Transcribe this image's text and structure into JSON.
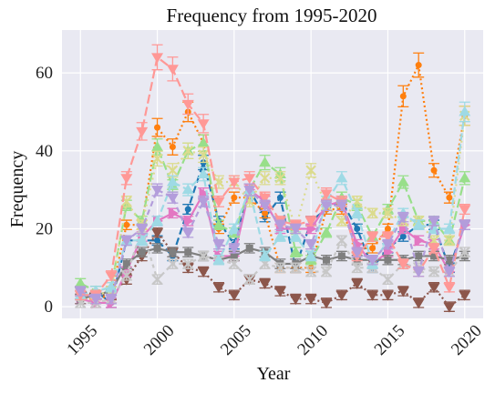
{
  "chart_data": {
    "type": "line",
    "title": "Frequency from 1995-2020",
    "xlabel": "Year",
    "ylabel": "Frequency",
    "xlim": [
      1993.8,
      2021.2
    ],
    "ylim": [
      -3,
      71
    ],
    "x_ticks": [
      1995,
      2000,
      2005,
      2010,
      2015,
      2020
    ],
    "y_ticks": [
      0,
      20,
      40,
      60
    ],
    "grid": true,
    "legend": "none",
    "background": "#e9e9f2",
    "x": [
      1995,
      1996,
      1997,
      1998,
      1999,
      2000,
      2001,
      2002,
      2003,
      2004,
      2005,
      2006,
      2007,
      2008,
      2009,
      2010,
      2011,
      2012,
      2013,
      2014,
      2015,
      2016,
      2017,
      2018,
      2019,
      2020
    ],
    "series": [
      {
        "color": "#1f77b4",
        "dash": "8,4",
        "marker": "circle",
        "values": [
          3,
          4,
          1,
          17,
          17,
          17,
          13,
          25,
          37,
          22,
          16,
          30,
          23,
          28,
          10,
          22,
          25,
          27,
          20,
          10,
          15,
          18,
          21,
          21,
          10,
          21
        ]
      },
      {
        "color": "#ff7f0e",
        "dash": "2,3",
        "marker": "circle",
        "values": [
          2,
          2,
          3,
          21,
          21,
          46,
          41,
          50,
          42,
          20,
          28,
          28,
          24,
          10,
          10,
          10,
          25,
          25,
          15,
          15,
          20,
          54,
          62,
          35,
          28,
          49
        ]
      },
      {
        "color": "#8c564b",
        "dash": "2,3",
        "marker": "triangle-down",
        "values": [
          4,
          3,
          3,
          7,
          13,
          19,
          14,
          10,
          9,
          5,
          3,
          7,
          6,
          4,
          2,
          2,
          1,
          3,
          6,
          3,
          3,
          4,
          1,
          5,
          0,
          3
        ]
      },
      {
        "color": "#e377c2",
        "dash": "",
        "marker": "triangle-right",
        "values": [
          2,
          1,
          1,
          9,
          18,
          22,
          24,
          22,
          29,
          13,
          13,
          30,
          27,
          20,
          20,
          20,
          26,
          27,
          16,
          11,
          14,
          20,
          17,
          16,
          9,
          21
        ]
      },
      {
        "color": "#7f7f7f",
        "dash": "",
        "marker": "square",
        "values": [
          2,
          3,
          4,
          11,
          14,
          15,
          14,
          14,
          13,
          12,
          13,
          15,
          14,
          11,
          11,
          13,
          12,
          13,
          12,
          12,
          12,
          12,
          13,
          13,
          12,
          13
        ]
      },
      {
        "color": "#c7c7c7",
        "dash": "4,4",
        "marker": "x",
        "values": [
          1,
          1,
          2,
          8,
          20,
          7,
          11,
          11,
          13,
          12,
          11,
          7,
          11,
          10,
          10,
          9,
          9,
          17,
          10,
          10,
          7,
          11,
          10,
          9,
          9,
          14
        ]
      },
      {
        "color": "#98df8a",
        "dash": "10,4",
        "marker": "triangle-up",
        "values": [
          6,
          4,
          5,
          26,
          22,
          41,
          31,
          40,
          42,
          21,
          19,
          30,
          37,
          34,
          14,
          12,
          19,
          28,
          26,
          18,
          25,
          32,
          22,
          22,
          17,
          33
        ]
      },
      {
        "color": "#dbdb8d",
        "dash": "2,4",
        "marker": "x",
        "values": [
          3,
          3,
          4,
          27,
          21,
          38,
          35,
          40,
          39,
          32,
          32,
          27,
          33,
          33,
          20,
          35,
          26,
          22,
          27,
          24,
          24,
          22,
          22,
          17,
          17,
          49
        ]
      },
      {
        "color": "#9edae5",
        "dash": "8,4",
        "marker": "triangle-up",
        "values": [
          3,
          4,
          5,
          17,
          17,
          22,
          32,
          30,
          34,
          12,
          20,
          30,
          13,
          18,
          18,
          13,
          27,
          33,
          24,
          11,
          17,
          24,
          21,
          20,
          20,
          50
        ]
      },
      {
        "color": "#ff9896",
        "dash": "10,4",
        "marker": "triangle-down",
        "values": [
          3,
          3,
          8,
          33,
          45,
          64,
          61,
          52,
          47,
          27,
          32,
          33,
          28,
          22,
          21,
          22,
          29,
          27,
          13,
          18,
          18,
          11,
          9,
          15,
          5,
          25
        ]
      },
      {
        "color": "#b39ddb",
        "dash": "6,4",
        "marker": "triangle-down",
        "values": [
          4,
          2,
          2,
          17,
          20,
          30,
          28,
          19,
          27,
          16,
          15,
          30,
          26,
          21,
          20,
          16,
          26,
          26,
          14,
          12,
          16,
          23,
          9,
          22,
          9,
          21
        ]
      }
    ]
  }
}
